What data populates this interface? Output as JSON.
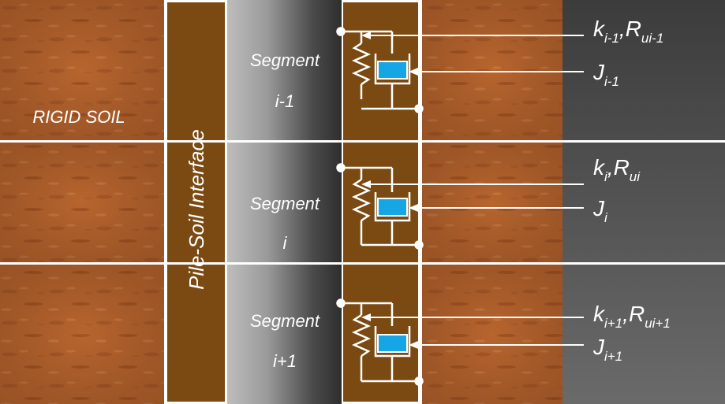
{
  "rigid_soil_label": "RIGID SOIL",
  "interface_label": "Pile-Soil Interface",
  "segments": [
    {
      "line1": "Segment",
      "line2": "i-1",
      "k_base": "k",
      "k_sub": "i-1",
      "r_base": "R",
      "r_sub": "ui-1",
      "j_base": "J",
      "j_sub": "i-1"
    },
    {
      "line1": "Segment",
      "line2": "i",
      "k_base": "k",
      "k_sub": "i",
      "r_base": "R",
      "r_sub": "ui",
      "j_base": "J",
      "j_sub": "i"
    },
    {
      "line1": "Segment",
      "line2": "i+1",
      "k_base": "k",
      "k_sub": "i+1",
      "r_base": "R",
      "r_sub": "ui+1",
      "j_base": "J",
      "j_sub": "i+1"
    }
  ],
  "colors": {
    "soil": "#b8652e",
    "interface_brown": "#7a4a12",
    "dashpot_blue": "#16a6e6"
  }
}
